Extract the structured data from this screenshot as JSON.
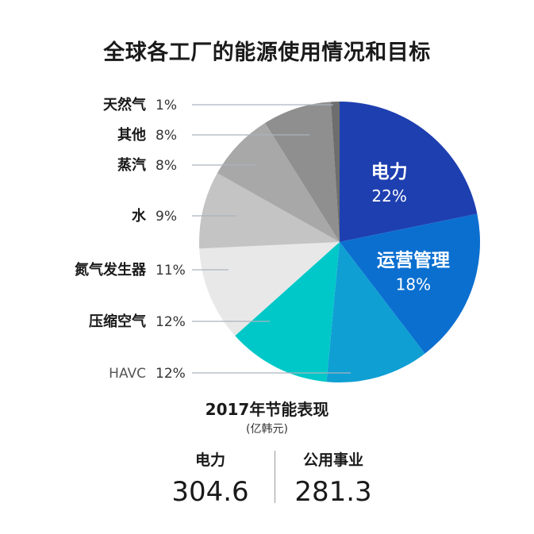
{
  "title": "全球各工厂的能源使用情况和目标",
  "chart_data": {
    "type": "pie",
    "title": "全球各工厂的能源使用情况和目标",
    "slices": [
      {
        "label": "电力",
        "value": 22,
        "display": "22%",
        "color": "#1e3fb0"
      },
      {
        "label": "运营管理",
        "value": 18,
        "display": "18%",
        "color": "#0b6fd0"
      },
      {
        "label": "HAVC",
        "value": 12,
        "display": "12%",
        "color": "#0f9fd3"
      },
      {
        "label": "压缩空气",
        "value": 12,
        "display": "12%",
        "color": "#00c8c8"
      },
      {
        "label": "氮气发生器",
        "value": 11,
        "display": "11%",
        "color": "#e8e8e8"
      },
      {
        "label": "水",
        "value": 9,
        "display": "9%",
        "color": "#c4c4c4"
      },
      {
        "label": "蒸汽",
        "value": 8,
        "display": "8%",
        "color": "#a8a8a8"
      },
      {
        "label": "其他",
        "value": 8,
        "display": "8%",
        "color": "#8f8f8f"
      },
      {
        "label": "天然气",
        "value": 1,
        "display": "1%",
        "color": "#6e6e6e"
      }
    ]
  },
  "summary": {
    "title": "2017年节能表现",
    "unit": "(亿韩元)",
    "left_label": "电力",
    "left_value": "304.6",
    "right_label": "公用事业",
    "right_value": "281.3"
  }
}
